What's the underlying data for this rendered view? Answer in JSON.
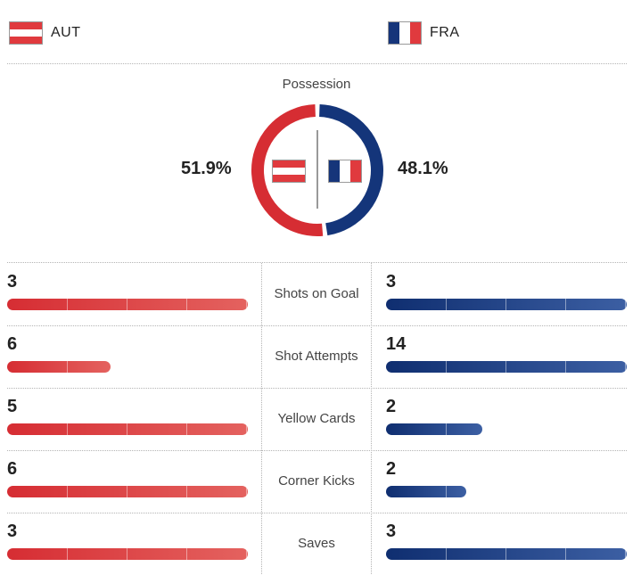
{
  "teams": {
    "home": {
      "code": "AUT",
      "color": "#d62d33",
      "flag": "austria-flag"
    },
    "away": {
      "code": "FRA",
      "color": "#14357a",
      "flag": "france-flag"
    }
  },
  "possession": {
    "title": "Possession",
    "home_pct": "51.9%",
    "away_pct": "48.1%",
    "home_value": 51.9,
    "away_value": 48.1
  },
  "stats": [
    {
      "label": "Shots on Goal",
      "home": 3,
      "away": 3,
      "home_text": "3",
      "away_text": "3"
    },
    {
      "label": "Shot Attempts",
      "home": 6,
      "away": 14,
      "home_text": "6",
      "away_text": "14"
    },
    {
      "label": "Yellow Cards",
      "home": 5,
      "away": 2,
      "home_text": "5",
      "away_text": "2"
    },
    {
      "label": "Corner Kicks",
      "home": 6,
      "away": 2,
      "home_text": "6",
      "away_text": "2"
    },
    {
      "label": "Saves",
      "home": 3,
      "away": 3,
      "home_text": "3",
      "away_text": "3"
    }
  ]
}
